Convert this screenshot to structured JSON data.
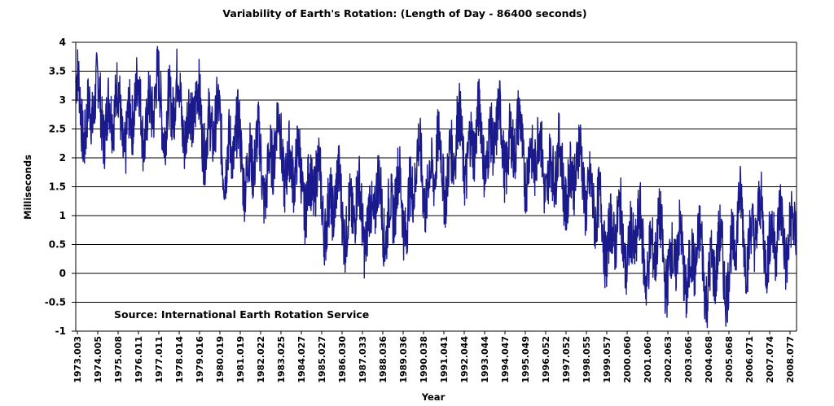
{
  "chart_data": {
    "type": "line",
    "title": "Variability of Earth's Rotation: (Length of Day - 86400 seconds)",
    "xlabel": "Year",
    "ylabel": "Milliseconds",
    "annotation": "Source: International Earth Rotation Service",
    "ylim": [
      -1,
      4
    ],
    "yticks": [
      "4",
      "3.5",
      "3",
      "2.5",
      "2",
      "1.5",
      "1",
      "0.5",
      "0",
      "-0.5",
      "-1"
    ],
    "xlim": [
      1973.003,
      2008.9
    ],
    "xticks": [
      "1973.003",
      "1974.005",
      "1975.008",
      "1976.011",
      "1977.011",
      "1978.014",
      "1979.016",
      "1980.019",
      "1981.019",
      "1982.022",
      "1983.025",
      "1984.027",
      "1985.027",
      "1986.030",
      "1987.033",
      "1988.036",
      "1989.036",
      "1990.038",
      "1991.041",
      "1992.044",
      "1993.044",
      "1994.047",
      "1995.049",
      "1996.052",
      "1997.052",
      "1998.055",
      "1999.057",
      "2000.060",
      "2001.060",
      "2002.063",
      "2003.066",
      "2004.068",
      "2005.068",
      "2006.071",
      "2007.074",
      "2008.077"
    ],
    "grid": true,
    "legend": "none",
    "series": [
      {
        "color": "#1a1a8c",
        "x": [
          1973.0,
          1973.5,
          1974.0,
          1974.5,
          1975.0,
          1975.5,
          1976.0,
          1976.5,
          1977.0,
          1977.5,
          1978.0,
          1978.5,
          1979.0,
          1979.5,
          1980.0,
          1980.5,
          1981.0,
          1981.5,
          1982.0,
          1982.5,
          1983.0,
          1983.5,
          1984.0,
          1984.5,
          1985.0,
          1985.5,
          1986.0,
          1986.5,
          1987.0,
          1987.5,
          1988.0,
          1988.5,
          1989.0,
          1989.5,
          1990.0,
          1990.5,
          1991.0,
          1991.5,
          1992.0,
          1992.5,
          1993.0,
          1993.5,
          1994.0,
          1994.5,
          1995.0,
          1995.5,
          1996.0,
          1996.5,
          1997.0,
          1997.5,
          1998.0,
          1998.5,
          1999.0,
          1999.5,
          2000.0,
          2000.5,
          2001.0,
          2001.5,
          2002.0,
          2002.5,
          2003.0,
          2003.5,
          2004.0,
          2004.5,
          2005.0,
          2005.5,
          2006.0,
          2006.5,
          2007.0,
          2007.5,
          2008.0,
          2008.5,
          2008.9
        ],
        "y": [
          3.3,
          2.4,
          3.2,
          2.5,
          3.1,
          2.2,
          3.2,
          2.4,
          3.3,
          2.5,
          3.3,
          2.4,
          3.1,
          2.2,
          2.8,
          1.8,
          2.5,
          1.6,
          2.3,
          1.4,
          2.6,
          1.7,
          2.0,
          1.2,
          1.8,
          0.8,
          1.6,
          0.7,
          1.4,
          0.6,
          1.5,
          0.7,
          1.6,
          0.8,
          2.1,
          1.3,
          2.2,
          1.5,
          2.6,
          1.8,
          2.7,
          1.9,
          2.7,
          1.9,
          2.6,
          1.7,
          2.3,
          1.5,
          2.1,
          1.3,
          2.1,
          1.3,
          1.2,
          0.4,
          1.0,
          0.2,
          0.9,
          0.0,
          0.8,
          -0.1,
          0.6,
          -0.2,
          0.6,
          -0.3,
          0.5,
          -0.2,
          1.2,
          0.3,
          1.1,
          0.3,
          0.9,
          0.4,
          1.1
        ]
      }
    ]
  }
}
